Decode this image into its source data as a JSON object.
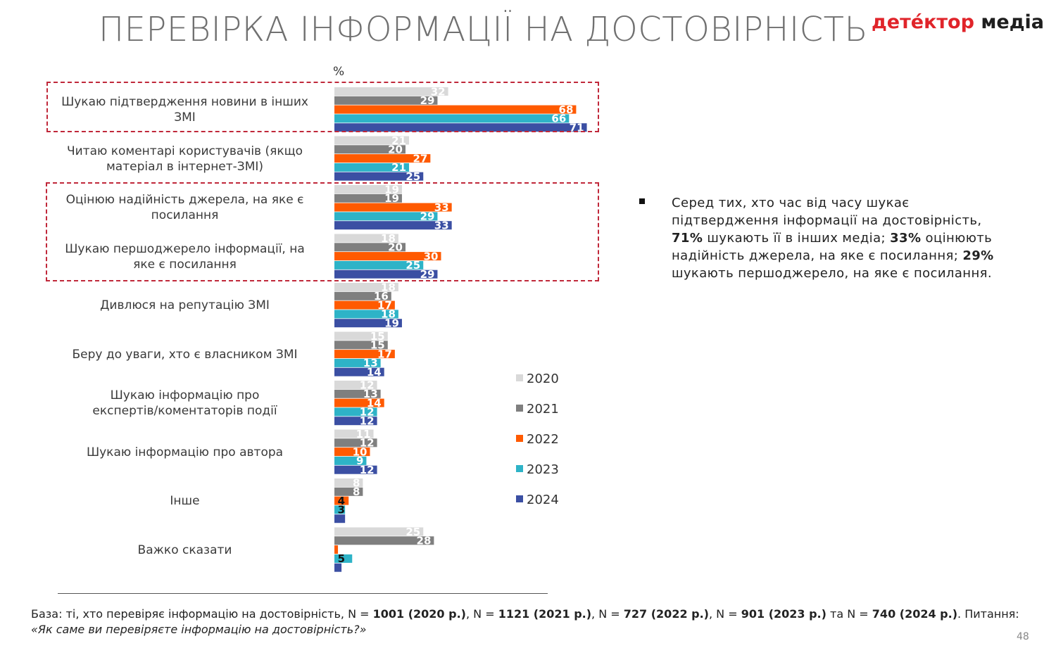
{
  "title": "ПЕРЕВІРКА ІНФОРМАЦІЇ НА ДОСТОВІРНІСТЬ",
  "logo": {
    "part1": "детéктор",
    "part2": "медіа"
  },
  "chart_data": {
    "type": "bar",
    "orientation": "horizontal",
    "unit_label": "%",
    "categories": [
      "Шукаю підтвердження новини в інших ЗМІ",
      "Читаю коментарі користувачів (якщо матеріал в інтернет-ЗМІ)",
      "Оцінюю надійність джерела, на яке є посилання",
      "Шукаю першоджерело інформації, на яке є посилання",
      "Дивлюся на репутацію ЗМІ",
      "Беру до уваги, хто є власником ЗМІ",
      "Шукаю інформацію про експертів/коментаторів події",
      "Шукаю інформацію про автора",
      "Інше",
      "Важко сказати"
    ],
    "category_lines": [
      [
        "Шукаю підтвердження новини в інших",
        "ЗМІ"
      ],
      [
        "Читаю коментарі користувачів (якщо",
        "матеріал в інтернет-ЗМІ)"
      ],
      [
        "Оцінюю надійність джерела, на яке є",
        "посилання"
      ],
      [
        "Шукаю першоджерело інформації, на",
        "яке є посилання"
      ],
      [
        "Дивлюся на репутацію ЗМІ"
      ],
      [
        "Беру до уваги, хто є власником ЗМІ"
      ],
      [
        "Шукаю інформацію про",
        "експертів/коментаторів події"
      ],
      [
        "Шукаю інформацію про автора"
      ],
      [
        "Інше"
      ],
      [
        "Важко сказати"
      ]
    ],
    "series": [
      {
        "name": "2020",
        "color": "#d9d9d9",
        "values": [
          32,
          21,
          19,
          18,
          18,
          15,
          12,
          11,
          8,
          25
        ]
      },
      {
        "name": "2021",
        "color": "#7f7f7f",
        "values": [
          29,
          20,
          19,
          20,
          16,
          15,
          13,
          12,
          8,
          28
        ]
      },
      {
        "name": "2022",
        "color": "#ff5a00",
        "values": [
          68,
          27,
          33,
          30,
          17,
          17,
          14,
          10,
          4,
          1
        ]
      },
      {
        "name": "2023",
        "color": "#2eb3c7",
        "values": [
          66,
          21,
          29,
          25,
          18,
          13,
          12,
          9,
          3,
          5
        ]
      },
      {
        "name": "2024",
        "color": "#3b4fa3",
        "values": [
          71,
          25,
          33,
          29,
          19,
          14,
          12,
          12,
          3,
          2
        ]
      }
    ],
    "data_labels": [
      [
        "32",
        "29",
        "68",
        "66",
        "71"
      ],
      [
        "21",
        "20",
        "27",
        "21",
        "25"
      ],
      [
        "19",
        "19",
        "33",
        "29",
        "33"
      ],
      [
        "18",
        "20",
        "30",
        "25",
        "29"
      ],
      [
        "18",
        "16",
        "17",
        "18",
        "19"
      ],
      [
        "15",
        "15",
        "17",
        "13",
        "14"
      ],
      [
        "12",
        "13",
        "14",
        "12",
        "12"
      ],
      [
        "11",
        "12",
        "10",
        "9",
        "12"
      ],
      [
        "8",
        "8",
        "4",
        "3",
        ""
      ],
      [
        "25",
        "28",
        "",
        "5",
        ""
      ]
    ],
    "highlighted_categories": [
      0,
      2,
      3
    ],
    "legend_position": "right"
  },
  "note": {
    "text_1": "Серед тих, хто час від часу шукає підтвердження інформації на достовірність, ",
    "bold_1": "71%",
    "text_2": " шукають її в інших медіа; ",
    "bold_2": "33%",
    "text_3": " оцінюють надійність джерела, на яке є посилання; ",
    "bold_3": "29%",
    "text_4": " шукають першоджерело, на яке є посилання."
  },
  "footnote": {
    "t1": "База: ті, хто перевіряє інформацію на достовірність, N = ",
    "b1": "1001 (2020 р.)",
    "t2": ", N = ",
    "b2": "1121 (2021 р.)",
    "t3": ", N = ",
    "b3": "727 (2022 р.)",
    "t4": ", N = ",
    "b4": "901 (2023 р.)",
    "t5": " та N = ",
    "b5": "740 (2024 р.)",
    "t6": ". Питання: ",
    "question": "«Як саме ви перевіряєте інформацію на достовірність?»"
  },
  "page_number": "48"
}
